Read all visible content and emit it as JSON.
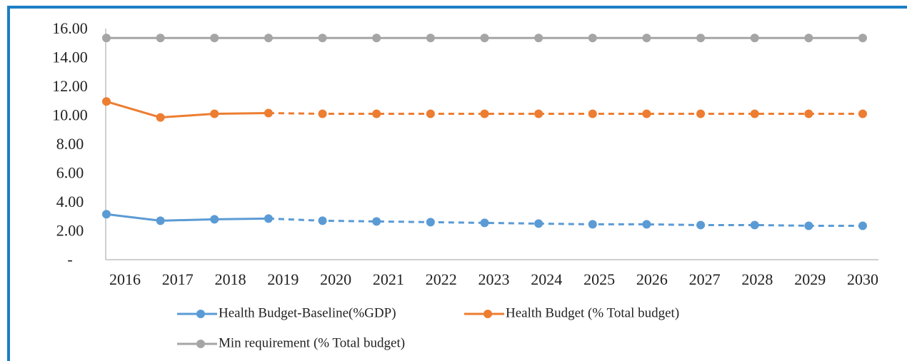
{
  "chart_data": {
    "type": "line",
    "categories": [
      "2016",
      "2017",
      "2018",
      "2019",
      "2020",
      "2021",
      "2022",
      "2023",
      "2024",
      "2025",
      "2026",
      "2027",
      "2028",
      "2029",
      "2030"
    ],
    "series": [
      {
        "name": "Health Budget-Baseline(%GDP)",
        "color": "#5b9bd5",
        "values": [
          3.0,
          2.55,
          2.65,
          2.7,
          2.55,
          2.5,
          2.45,
          2.4,
          2.35,
          2.3,
          2.3,
          2.25,
          2.25,
          2.2,
          2.2
        ],
        "dashed_after_index": 3
      },
      {
        "name": "Health Budget (% Total budget)",
        "color": "#ed7d31",
        "values": [
          10.8,
          9.7,
          9.95,
          10.0,
          9.95,
          9.95,
          9.95,
          9.95,
          9.95,
          9.95,
          9.95,
          9.95,
          9.95,
          9.95,
          9.95
        ],
        "dashed_after_index": 3
      },
      {
        "name": "Min requirement (% Total budget)",
        "color": "#a5a5a5",
        "values": [
          15.2,
          15.2,
          15.2,
          15.2,
          15.2,
          15.2,
          15.2,
          15.2,
          15.2,
          15.2,
          15.2,
          15.2,
          15.2,
          15.2,
          15.2
        ]
      }
    ],
    "ylim": [
      0,
      16
    ],
    "yticks": [
      {
        "value": 0,
        "label": "-"
      },
      {
        "value": 2,
        "label": "2.00"
      },
      {
        "value": 4,
        "label": "4.00"
      },
      {
        "value": 6,
        "label": "6.00"
      },
      {
        "value": 8,
        "label": "8.00"
      },
      {
        "value": 10,
        "label": "10.00"
      },
      {
        "value": 12,
        "label": "12.00"
      },
      {
        "value": 14,
        "label": "14.00"
      },
      {
        "value": 16,
        "label": "16.00"
      }
    ],
    "grid": false,
    "legend": "bottom"
  }
}
